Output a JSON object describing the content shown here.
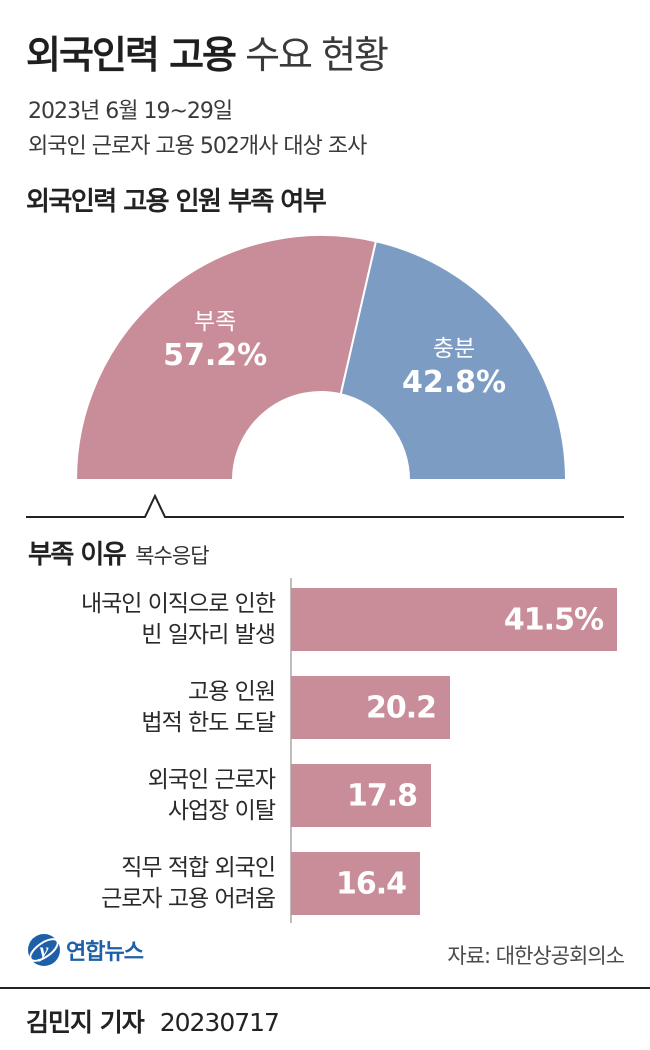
{
  "header": {
    "title_bold": "외국인력 고용",
    "title_light": "수요 현황",
    "date_line": "2023년 6월 19~29일",
    "survey_line": "외국인 근로자 고용 502개사 대상 조사"
  },
  "gauge_section": {
    "title": "외국인력 고용 인원 부족 여부"
  },
  "reasons_section": {
    "title": "부족 이유",
    "note": "복수응답"
  },
  "chart_data": [
    {
      "type": "pie",
      "title": "외국인력 고용 인원 부족 여부",
      "categories": [
        "부족",
        "충분"
      ],
      "values": [
        57.2,
        42.8
      ],
      "value_labels": [
        "57.2%",
        "42.8%"
      ],
      "colors": [
        "#c88d99",
        "#7c9cc4"
      ]
    },
    {
      "type": "bar",
      "orientation": "horizontal",
      "title": "부족 이유",
      "categories": [
        [
          "내국인 이직으로 인한",
          "빈 일자리 발생"
        ],
        [
          "고용 인원",
          "법적 한도 도달"
        ],
        [
          "외국인 근로자",
          "사업장 이탈"
        ],
        [
          "직무 적합 외국인",
          "근로자 고용 어려움"
        ]
      ],
      "values": [
        41.5,
        20.2,
        17.8,
        16.4
      ],
      "value_labels": [
        "41.5%",
        "20.2",
        "17.8",
        "16.4"
      ],
      "color": "#c88d99"
    }
  ],
  "footer": {
    "logo_text": "연합뉴스",
    "source": "자료: 대한상공회의소",
    "byline_name": "김민지 기자",
    "byline_date": "20230717"
  },
  "colors": {
    "shortage": "#c88d99",
    "sufficient": "#7c9cc4"
  },
  "icons": {
    "logo": "yonhap-logo-icon"
  }
}
